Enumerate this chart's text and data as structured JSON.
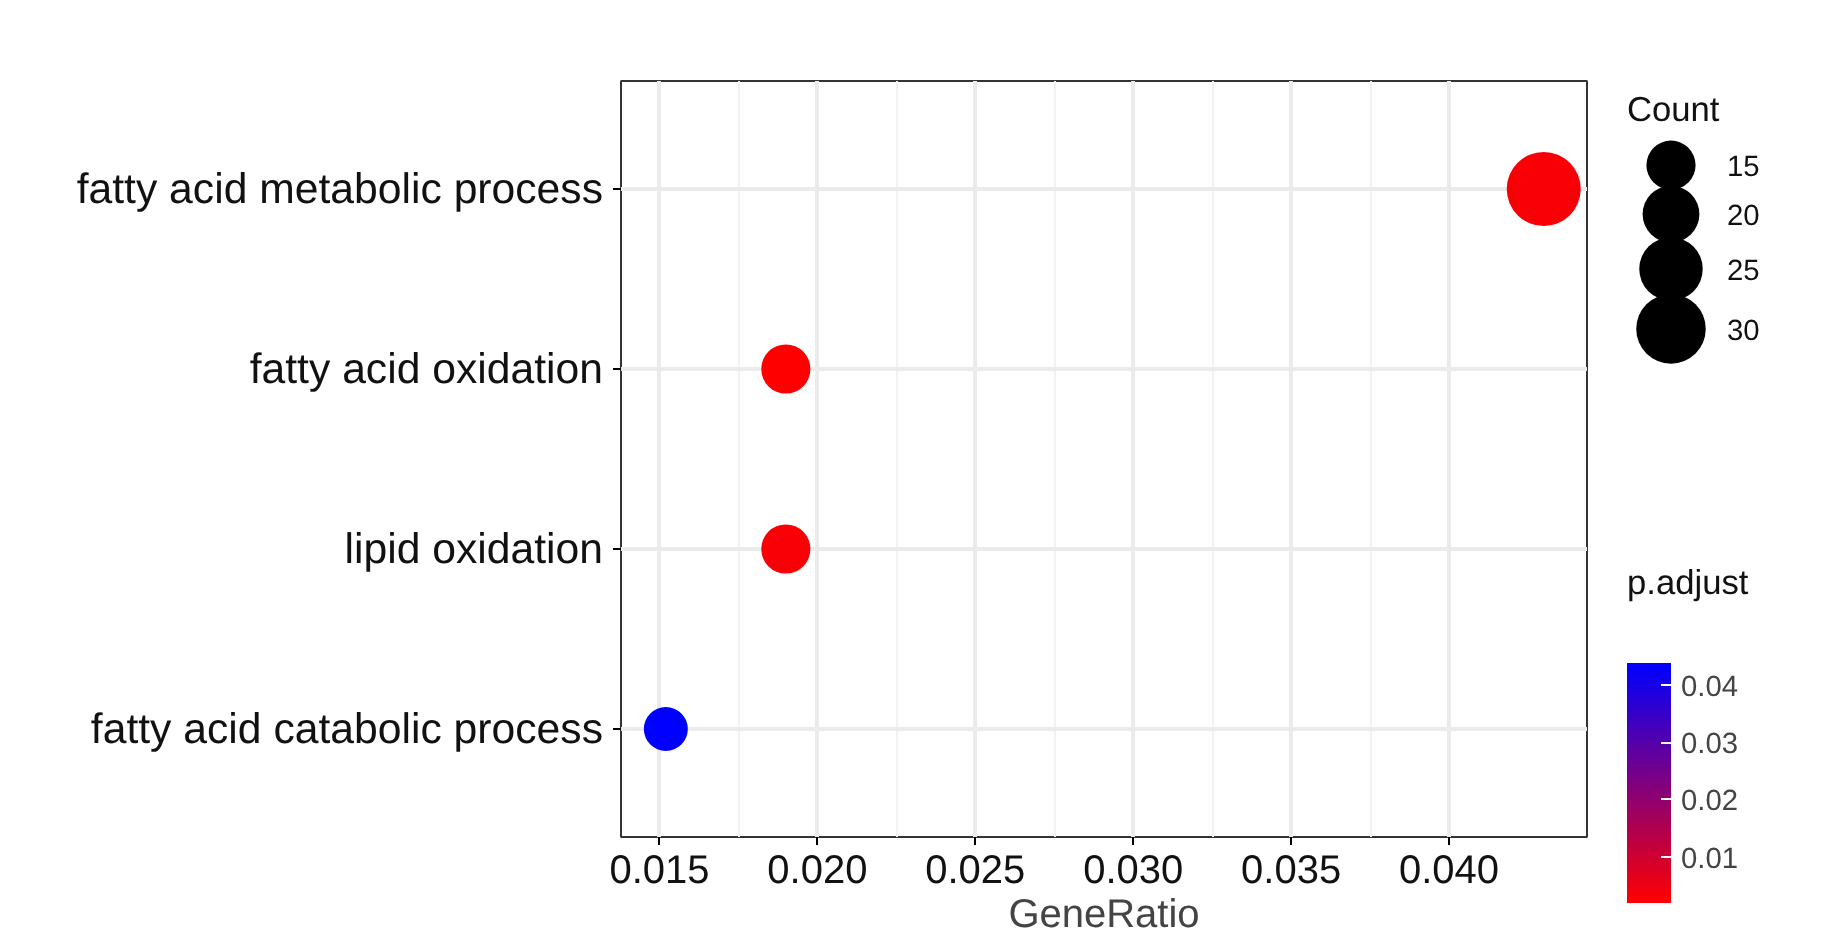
{
  "chart_data": {
    "type": "bubble",
    "orientation": "horizontal",
    "xlabel": "GeneRatio",
    "categories": [
      "fatty acid metabolic process",
      "fatty acid oxidation",
      "lipid oxidation",
      "fatty acid catabolic process"
    ],
    "values": [
      0.043,
      0.019,
      0.019,
      0.0152
    ],
    "sizes": [
      34,
      15,
      15,
      12
    ],
    "size_legend": [
      15,
      20,
      25,
      30
    ],
    "legend_title": "Count",
    "cvalues": [
      0.003,
      0.0019,
      0.003,
      0.0438
    ],
    "clabel": "p.adjust",
    "clim": [
      0.0019,
      0.0438
    ],
    "cticks": [
      0.01,
      0.02,
      0.03,
      0.04
    ],
    "xlim": [
      0.01378,
      0.04437
    ],
    "xticks": [
      {
        "value": 0.015,
        "label": "0.015"
      },
      {
        "value": 0.02,
        "label": "0.020"
      },
      {
        "value": 0.025,
        "label": "0.025"
      },
      {
        "value": 0.03,
        "label": "0.030"
      },
      {
        "value": 0.035,
        "label": "0.035"
      },
      {
        "value": 0.04,
        "label": "0.040"
      }
    ],
    "grid": true,
    "marker": "circle"
  }
}
